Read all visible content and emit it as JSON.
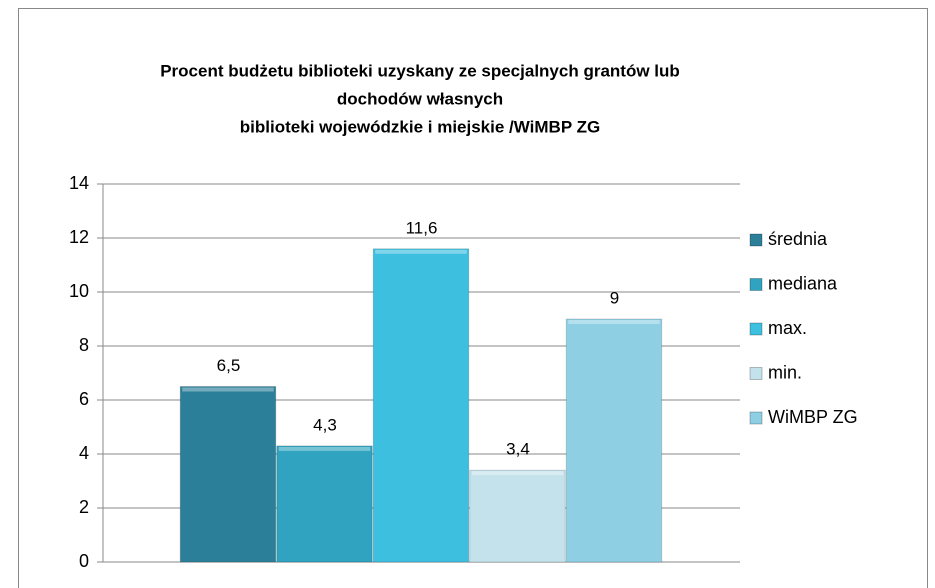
{
  "chart_data": {
    "type": "bar",
    "title": [
      "Procent budżetu biblioteki uzyskany ze specjalnych grantów lub",
      "dochodów własnych",
      "biblioteki wojewódzkie i miejskie /WiMBP ZG"
    ],
    "categories": [
      null
    ],
    "series": [
      {
        "name": "średnia",
        "color": "#2b7f99",
        "values": [
          6.5
        ],
        "value_labels": [
          "6,5"
        ]
      },
      {
        "name": "mediana",
        "color": "#2fa3c0",
        "values": [
          4.3
        ],
        "value_labels": [
          "4,3"
        ]
      },
      {
        "name": "max.",
        "color": "#3dbfdf",
        "values": [
          11.6
        ],
        "value_labels": [
          "11,6"
        ]
      },
      {
        "name": "min.",
        "color": "#c3e2ec",
        "values": [
          3.4
        ],
        "value_labels": [
          "3,4"
        ]
      },
      {
        "name": "WiMBP ZG",
        "color": "#8ecfe3",
        "values": [
          9
        ],
        "value_labels": [
          "9"
        ]
      }
    ],
    "ylim": [
      0,
      14
    ],
    "yticks": [
      0,
      2,
      4,
      6,
      8,
      10,
      12,
      14
    ],
    "grid": true,
    "legend": "right"
  }
}
